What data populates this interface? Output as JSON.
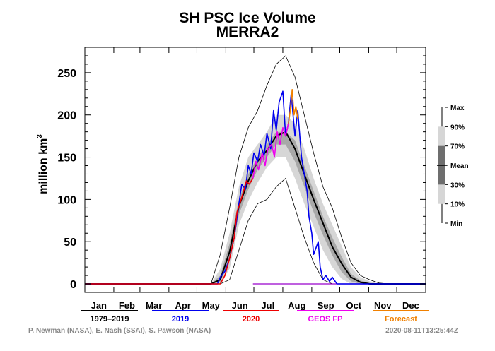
{
  "title": "SH PSC Ice Volume",
  "subtitle": "MERRA2",
  "footer_left": "P. Newman (NASA), E. Nash (SSAI), S. Pawson (NASA)",
  "footer_right": "2020-08-11T13:25:44Z",
  "chart_data": {
    "type": "line",
    "title": "SH PSC Ice Volume",
    "subtitle": "MERRA2",
    "ylabel_base": "million km",
    "ylabel_exp": "3",
    "ylim": [
      -10,
      280
    ],
    "xlim": [
      0,
      365
    ],
    "yticks": [
      0,
      50,
      100,
      150,
      200,
      250
    ],
    "months": [
      {
        "label": "Jan",
        "mid": 15
      },
      {
        "label": "Feb",
        "mid": 45
      },
      {
        "label": "Mar",
        "mid": 74
      },
      {
        "label": "Apr",
        "mid": 105
      },
      {
        "label": "May",
        "mid": 135
      },
      {
        "label": "Jun",
        "mid": 166
      },
      {
        "label": "Jul",
        "mid": 196
      },
      {
        "label": "Aug",
        "mid": 227
      },
      {
        "label": "Sep",
        "mid": 258
      },
      {
        "label": "Oct",
        "mid": 288
      },
      {
        "label": "Nov",
        "mid": 319
      },
      {
        "label": "Dec",
        "mid": 349
      }
    ],
    "month_bounds": [
      0,
      31,
      59,
      90,
      120,
      151,
      181,
      212,
      243,
      273,
      304,
      334,
      365
    ],
    "band_x": [
      135,
      145,
      155,
      165,
      175,
      185,
      195,
      205,
      215,
      225,
      235,
      245,
      255,
      265,
      275,
      285,
      295,
      305,
      315,
      325
    ],
    "band_max": [
      0,
      35,
      90,
      150,
      185,
      205,
      235,
      260,
      270,
      245,
      200,
      155,
      115,
      90,
      55,
      25,
      10,
      5,
      1,
      0
    ],
    "band_p90": [
      0,
      18,
      60,
      115,
      150,
      165,
      180,
      200,
      200,
      190,
      160,
      125,
      95,
      70,
      45,
      20,
      8,
      3,
      0,
      0
    ],
    "band_p70": [
      0,
      10,
      48,
      100,
      130,
      150,
      165,
      180,
      180,
      170,
      140,
      110,
      80,
      55,
      32,
      12,
      4,
      1,
      0,
      0
    ],
    "band_mean": [
      0,
      5,
      38,
      92,
      122,
      145,
      158,
      175,
      180,
      160,
      130,
      100,
      72,
      44,
      24,
      8,
      2,
      0,
      0,
      0
    ],
    "band_p30": [
      0,
      2,
      28,
      82,
      112,
      135,
      150,
      165,
      165,
      145,
      115,
      85,
      58,
      34,
      14,
      3,
      0,
      0,
      0,
      0
    ],
    "band_p10": [
      0,
      0,
      18,
      70,
      98,
      120,
      138,
      150,
      150,
      125,
      95,
      68,
      40,
      20,
      6,
      0,
      0,
      0,
      0,
      0
    ],
    "band_min": [
      0,
      0,
      5,
      40,
      75,
      95,
      100,
      115,
      125,
      90,
      55,
      25,
      5,
      0,
      0,
      0,
      0,
      0,
      0,
      0
    ],
    "series": [
      {
        "name": "1979–2019",
        "color": "#000000",
        "x": [
          0,
          135,
          145,
          155,
          165,
          175,
          185,
          195,
          205,
          215,
          225,
          235,
          245,
          255,
          265,
          275,
          285,
          295,
          305,
          315,
          365
        ],
        "y": [
          0,
          0,
          5,
          38,
          92,
          122,
          145,
          158,
          175,
          180,
          160,
          130,
          100,
          72,
          44,
          24,
          8,
          2,
          0,
          0,
          0
        ]
      },
      {
        "name": "2019",
        "color": "#0000ee",
        "x": [
          0,
          142,
          145,
          150,
          155,
          160,
          165,
          168,
          172,
          175,
          178,
          181,
          185,
          188,
          192,
          195,
          199,
          202,
          205,
          208,
          212,
          215,
          218,
          221,
          225,
          228,
          232,
          235,
          238,
          240,
          243,
          245,
          250,
          252,
          255,
          258,
          262,
          265,
          270,
          290,
          365
        ],
        "y": [
          0,
          0,
          8,
          15,
          30,
          55,
          95,
          118,
          112,
          140,
          130,
          155,
          145,
          165,
          152,
          178,
          160,
          205,
          182,
          215,
          228,
          175,
          190,
          225,
          175,
          205,
          150,
          130,
          110,
          80,
          60,
          35,
          50,
          20,
          5,
          10,
          3,
          8,
          0,
          0,
          0
        ]
      },
      {
        "name": "2020",
        "color": "#ee0000",
        "x": [
          0,
          145,
          150,
          155,
          160,
          163,
          166,
          170,
          173,
          176,
          180
        ],
        "y": [
          0,
          0,
          10,
          30,
          55,
          85,
          95,
          110,
          122,
          118,
          125
        ]
      },
      {
        "name": "GEOS FP",
        "color": "#ee00ee",
        "x": [
          180,
          183,
          186,
          190,
          193,
          196,
          200,
          203,
          206,
          209,
          212,
          215,
          218
        ],
        "y": [
          125,
          145,
          135,
          155,
          140,
          160,
          165,
          150,
          180,
          165,
          185,
          175,
          190
        ]
      },
      {
        "name": "Forecast",
        "color": "#f08000",
        "x": [
          218,
          220,
          222,
          224,
          226,
          228
        ],
        "y": [
          190,
          205,
          230,
          200,
          210,
          195
        ]
      }
    ],
    "legend_right": {
      "labels": [
        "Max",
        "90%",
        "70%",
        "Mean",
        "30%",
        "10%",
        "Min"
      ],
      "colors": [
        "#d6d6d6",
        "#a8a8a8",
        "#6e6e6e"
      ]
    },
    "bottom_legend": [
      "1979–2019",
      "2019",
      "2020",
      "GEOS FP",
      "Forecast"
    ]
  }
}
